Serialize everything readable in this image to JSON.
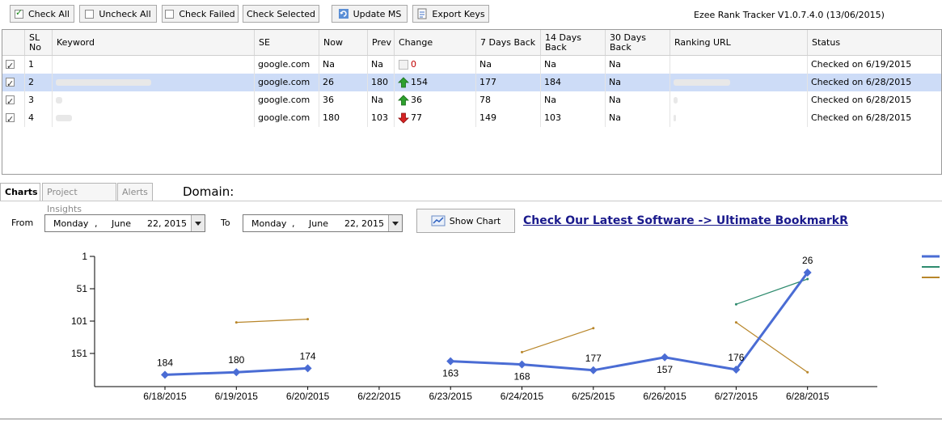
{
  "toolbar": {
    "check_all": "Check All",
    "uncheck_all": "Uncheck All",
    "check_failed": "Check Failed",
    "check_selected": "Check Selected",
    "update_ms": "Update MS",
    "export_keys": "Export Keys"
  },
  "app_title": "Ezee Rank Tracker V1.0.7.4.0 (13/06/2015)",
  "table": {
    "headers": {
      "sl": "SL No",
      "keyword": "Keyword",
      "se": "SE",
      "now": "Now",
      "prev": "Prev",
      "change": "Change",
      "d7": "7 Days Back",
      "d14": "14 Days Back",
      "d30": "30 Days Back",
      "url": "Ranking URL",
      "status": "Status"
    },
    "rows": [
      {
        "sl": "1",
        "se": "google.com",
        "now": "Na",
        "prev": "Na",
        "change": "0",
        "change_dir": "none",
        "d7": "Na",
        "d14": "Na",
        "d30": "Na",
        "status": "Checked on 6/19/2015"
      },
      {
        "sl": "2",
        "se": "google.com",
        "now": "26",
        "prev": "180",
        "change": "154",
        "change_dir": "up",
        "d7": "177",
        "d14": "184",
        "d30": "Na",
        "status": "Checked on 6/28/2015"
      },
      {
        "sl": "3",
        "se": "google.com",
        "now": "36",
        "prev": "Na",
        "change": "36",
        "change_dir": "up",
        "d7": "78",
        "d14": "Na",
        "d30": "Na",
        "status": "Checked on 6/28/2015"
      },
      {
        "sl": "4",
        "se": "google.com",
        "now": "180",
        "prev": "103",
        "change": "77",
        "change_dir": "down",
        "d7": "149",
        "d14": "103",
        "d30": "Na",
        "status": "Checked on 6/28/2015"
      }
    ]
  },
  "tabs": {
    "charts": "Charts",
    "insights": "Project Insights",
    "alerts": "Alerts"
  },
  "domain_label": "Domain:",
  "filters": {
    "from_label": "From",
    "to_label": "To",
    "from": {
      "day": "Monday",
      "sep": ",",
      "month": "June",
      "date": "22, 2015"
    },
    "to": {
      "day": "Monday",
      "sep": ",",
      "month": "June",
      "date": "22, 2015"
    },
    "show_chart": "Show Chart"
  },
  "promo_link": "Check Our Latest Software -> Ultimate BookmarkR",
  "chart_data": {
    "type": "line",
    "categories": [
      "6/18/2015",
      "6/19/2015",
      "6/20/2015",
      "6/22/2015",
      "6/23/2015",
      "6/24/2015",
      "6/25/2015",
      "6/26/2015",
      "6/27/2015",
      "6/28/2015"
    ],
    "yticks": [
      1,
      51,
      101,
      151
    ],
    "ylim": [
      1,
      200
    ],
    "y_inverted": true,
    "series": [
      {
        "color": "#4a6cd4",
        "marker": "diamond",
        "values": [
          184,
          180,
          174,
          null,
          163,
          168,
          177,
          157,
          176,
          26
        ],
        "labels": true
      },
      {
        "color": "#2e8b6e",
        "values": [
          null,
          null,
          null,
          null,
          null,
          null,
          null,
          null,
          75,
          36
        ],
        "labels": false
      },
      {
        "color": "#b8862a",
        "values": [
          null,
          103,
          98,
          null,
          null,
          149,
          112,
          null,
          103,
          180
        ],
        "labels": false
      }
    ],
    "legend_position": "right"
  }
}
